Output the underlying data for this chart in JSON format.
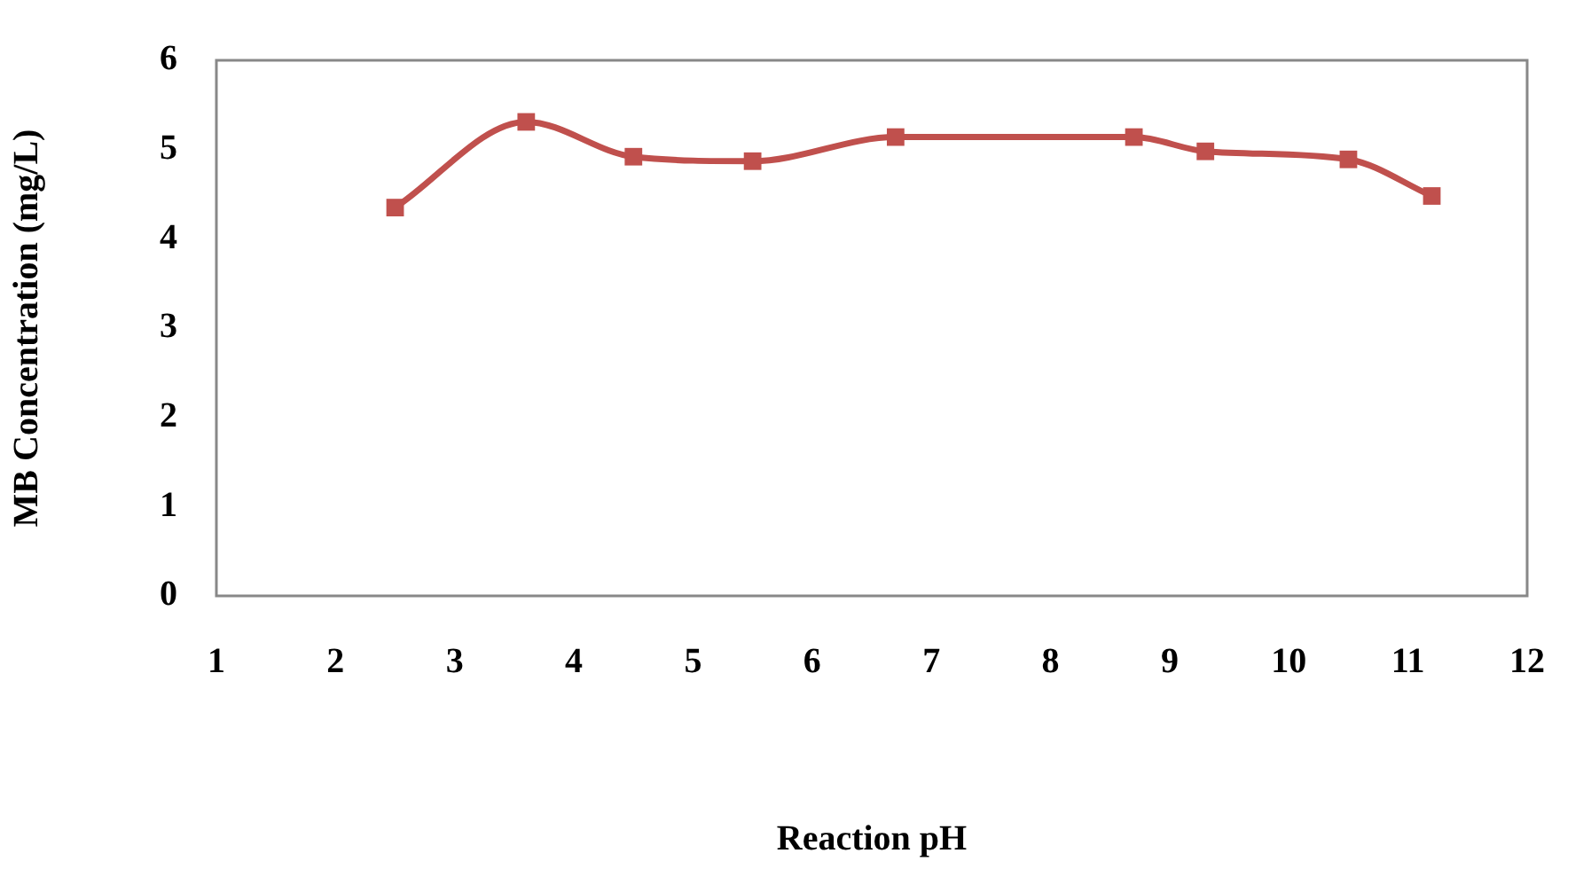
{
  "chart_data": {
    "type": "line",
    "xlabel": "Reaction pH",
    "ylabel": "MB Concentration (mg/L)",
    "x": [
      2.5,
      3.6,
      4.5,
      5.5,
      6.7,
      8.7,
      9.3,
      10.5,
      11.2
    ],
    "series": [
      {
        "color": "#c0504d",
        "values": [
          4.35,
          5.31,
          4.92,
          4.87,
          5.14,
          5.14,
          4.98,
          4.89,
          4.48
        ]
      }
    ],
    "xlim": [
      1,
      12
    ],
    "xticks": [
      1,
      2,
      3,
      4,
      5,
      6,
      7,
      8,
      9,
      10,
      11,
      12
    ],
    "ylim": [
      0,
      6
    ],
    "yticks": [
      0,
      1,
      2,
      3,
      4,
      5,
      6
    ],
    "grid": false,
    "legend": false,
    "marker": "square",
    "line_style": "solid"
  }
}
